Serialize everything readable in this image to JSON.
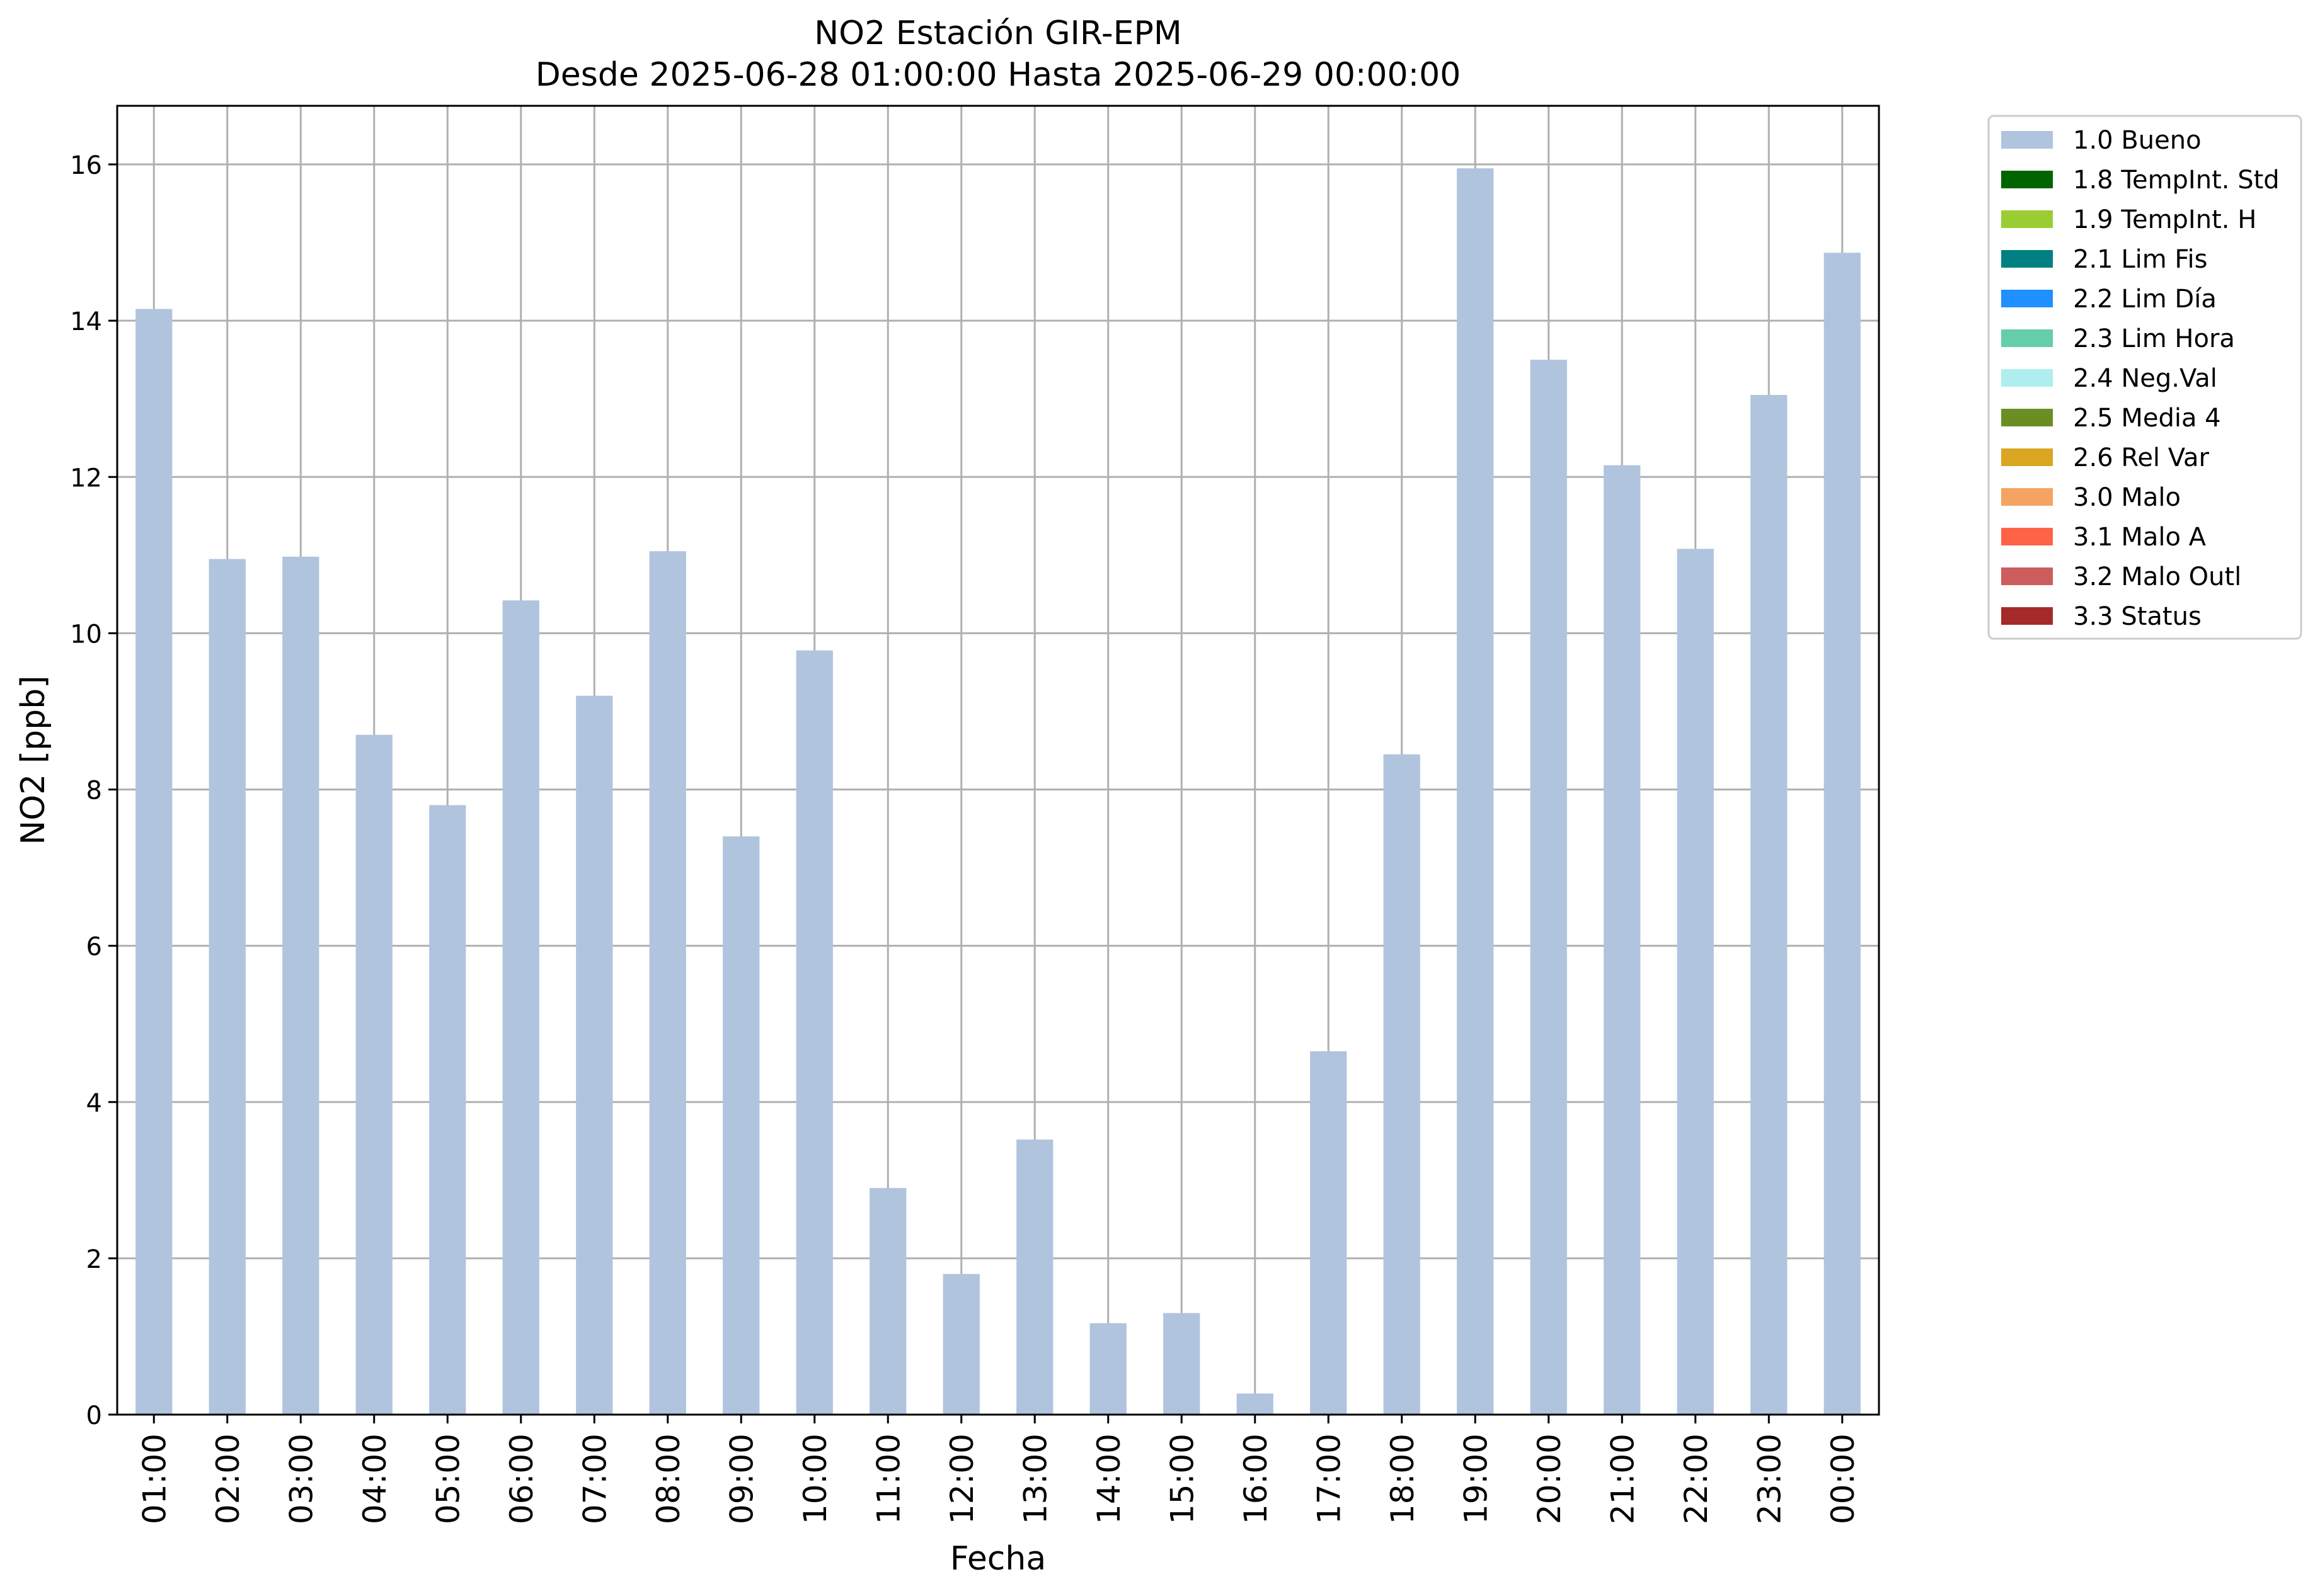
{
  "chart_data": {
    "type": "bar",
    "title": "NO2 Estación GIR-EPM",
    "subtitle": "Desde 2025-06-28 01:00:00 Hasta 2025-06-29 00:00:00",
    "xlabel": "Fecha",
    "ylabel": "NO2 [ppb]",
    "ylim": [
      0,
      16.75
    ],
    "yticks": [
      0,
      2,
      4,
      6,
      8,
      10,
      12,
      14,
      16
    ],
    "grid": true,
    "legend_position": "outside-top-right",
    "bar_color": "#b0c4de",
    "categories": [
      "01:00",
      "02:00",
      "03:00",
      "04:00",
      "05:00",
      "06:00",
      "07:00",
      "08:00",
      "09:00",
      "10:00",
      "11:00",
      "12:00",
      "13:00",
      "14:00",
      "15:00",
      "16:00",
      "17:00",
      "18:00",
      "19:00",
      "20:00",
      "21:00",
      "22:00",
      "23:00",
      "00:00"
    ],
    "series": [
      {
        "name": "1.0 Bueno",
        "values": [
          14.15,
          10.95,
          10.98,
          8.7,
          7.8,
          10.42,
          9.2,
          11.05,
          7.4,
          9.78,
          2.9,
          1.8,
          3.52,
          1.17,
          1.3,
          0.27,
          4.65,
          8.45,
          15.95,
          13.5,
          12.15,
          11.08,
          13.05,
          14.87
        ]
      }
    ],
    "legend": [
      {
        "label": "1.0 Bueno",
        "color": "#b0c4de"
      },
      {
        "label": "1.8 TempInt. Std",
        "color": "#006400"
      },
      {
        "label": "1.9 TempInt. H",
        "color": "#9acd32"
      },
      {
        "label": "2.1 Lim Fis",
        "color": "#008080"
      },
      {
        "label": "2.2 Lim Día",
        "color": "#1e90ff"
      },
      {
        "label": "2.3 Lim Hora",
        "color": "#66cdaa"
      },
      {
        "label": "2.4 Neg.Val",
        "color": "#afeeee"
      },
      {
        "label": "2.5 Media 4",
        "color": "#6b8e23"
      },
      {
        "label": "2.6 Rel Var",
        "color": "#daa520"
      },
      {
        "label": "3.0 Malo",
        "color": "#f4a460"
      },
      {
        "label": "3.1 Malo A",
        "color": "#ff6347"
      },
      {
        "label": "3.2 Malo Outl",
        "color": "#cd5c5c"
      },
      {
        "label": "3.3 Status",
        "color": "#a52a2a"
      }
    ]
  }
}
